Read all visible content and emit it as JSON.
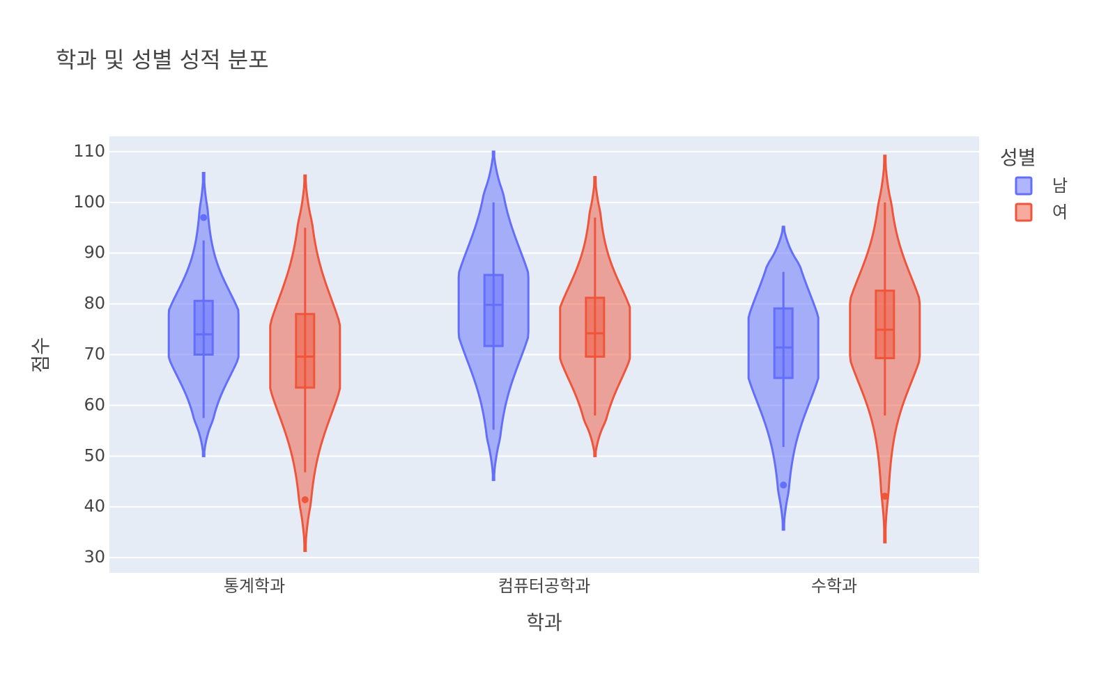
{
  "chart_data": {
    "type": "violin",
    "title": "학과 및 성별 성적 분포",
    "x_label": "학과",
    "y_label": "점수",
    "legend_title": "성별",
    "categories": [
      "통계학과",
      "컴퓨터공학과",
      "수학과"
    ],
    "ylim": [
      27,
      113
    ],
    "yticks": [
      30,
      40,
      50,
      60,
      70,
      80,
      90,
      100,
      110
    ],
    "grid": true,
    "legend_position": "right",
    "series": [
      {
        "name": "남",
        "color": "#636efa",
        "lowerfence": [
          57.5,
          55.2,
          51.8
        ],
        "q1": [
          70,
          71.7,
          65.4
        ],
        "median": [
          74,
          79.8,
          71.4
        ],
        "q3": [
          80.6,
          85.7,
          79.1
        ],
        "upperfence": [
          92.5,
          100,
          86.3
        ],
        "outliers": [
          [
            97
          ],
          [],
          [
            44.3
          ]
        ],
        "violin_min": [
          50,
          45.3,
          35.5
        ],
        "violin_max": [
          105.8,
          110,
          95.2
        ]
      },
      {
        "name": "여",
        "color": "#ef553b",
        "lowerfence": [
          46.8,
          58,
          58
        ],
        "q1": [
          63.5,
          69.6,
          69.3
        ],
        "median": [
          69.6,
          74.2,
          74.9
        ],
        "q3": [
          78,
          81.2,
          82.6
        ],
        "upperfence": [
          95,
          97,
          100
        ],
        "outliers": [
          [
            41.4
          ],
          [],
          [
            42.1
          ]
        ],
        "violin_min": [
          31.3,
          50,
          33
        ],
        "violin_max": [
          105.3,
          105,
          109.2
        ]
      }
    ]
  }
}
